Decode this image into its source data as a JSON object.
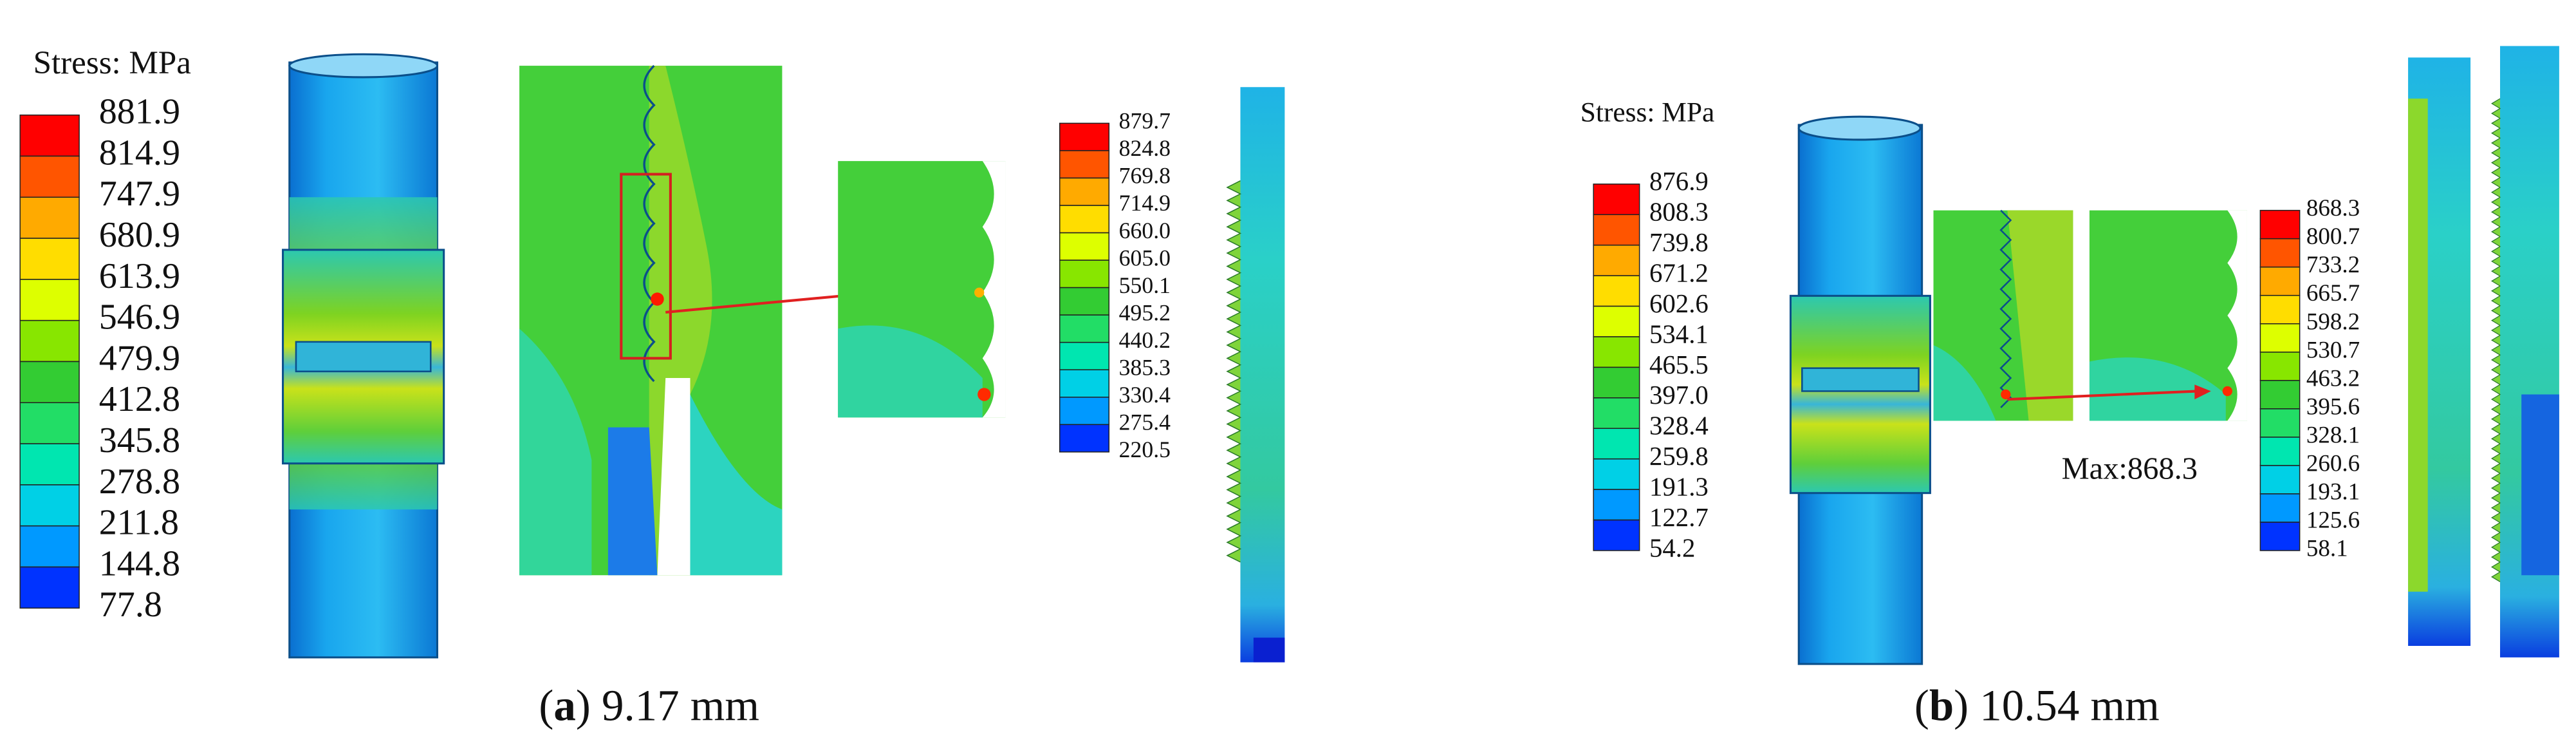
{
  "panels": [
    {
      "caption": [
        "(",
        "a",
        ") 9.17 mm"
      ],
      "legend_title": "Stress: MPa",
      "legend_levels": [
        "881.9",
        "814.9",
        "747.9",
        "680.9",
        "613.9",
        "546.9",
        "479.9",
        "412.8",
        "345.8",
        "278.8",
        "211.8",
        "144.8",
        "77.8"
      ],
      "inset_legend_levels": [
        "879.7",
        "824.8",
        "769.8",
        "714.9",
        "660.0",
        "605.0",
        "550.1",
        "495.2",
        "440.2",
        "385.3",
        "330.4",
        "275.4",
        "220.5"
      ]
    },
    {
      "caption": [
        "(",
        "b",
        ") 10.54 mm"
      ],
      "legend_title": "Stress: MPa",
      "legend_levels": [
        "876.9",
        "808.3",
        "739.8",
        "671.2",
        "602.6",
        "534.1",
        "465.5",
        "397.0",
        "328.4",
        "259.8",
        "191.3",
        "122.7",
        "54.2"
      ],
      "inset_legend_levels": [
        "868.3",
        "800.7",
        "733.2",
        "665.7",
        "598.2",
        "530.7",
        "463.2",
        "395.6",
        "328.1",
        "260.6",
        "193.1",
        "125.6",
        "58.1"
      ],
      "annotation": "Max:868.3"
    }
  ]
}
